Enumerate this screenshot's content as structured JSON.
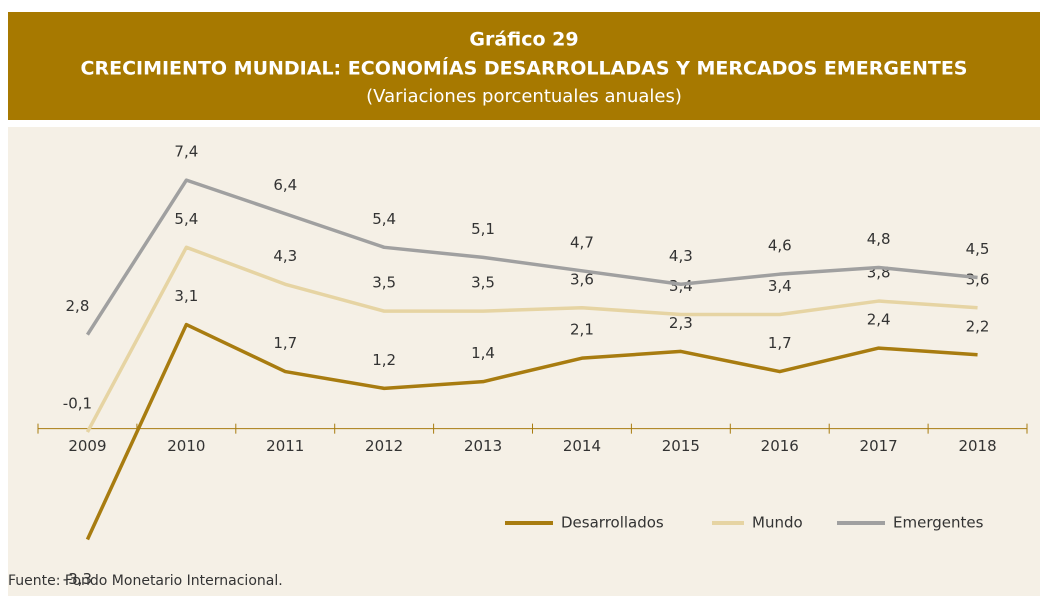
{
  "chart_data": {
    "type": "line",
    "chart_number": "Gráfico 29",
    "title": "CRECIMIENTO MUNDIAL: ECONOMÍAS DESARROLLADAS Y MERCADOS EMERGENTES",
    "subtitle": "(Variaciones porcentuales anuales)",
    "source": "Fuente: Fondo Monetario Internacional.",
    "categories": [
      "2009",
      "2010",
      "2011",
      "2012",
      "2013",
      "2014",
      "2015",
      "2016",
      "2017",
      "2018"
    ],
    "ylim": [
      -4,
      8
    ],
    "series": [
      {
        "name": "Desarrollados",
        "color": "#a87c10",
        "values": [
          -3.3,
          3.1,
          1.7,
          1.2,
          1.4,
          2.1,
          2.3,
          1.7,
          2.4,
          2.2
        ],
        "value_labels": [
          "-3,3",
          "3,1",
          "1,7",
          "1,2",
          "1,4",
          "2,1",
          "2,3",
          "1,7",
          "2,4",
          "2,2"
        ]
      },
      {
        "name": "Mundo",
        "color": "#e6d4a3",
        "values": [
          -0.1,
          5.4,
          4.3,
          3.5,
          3.5,
          3.6,
          3.4,
          3.4,
          3.8,
          3.6
        ],
        "value_labels": [
          "-0,1",
          "5,4",
          "4,3",
          "3,5",
          "3,5",
          "3,6",
          "3,4",
          "3,4",
          "3,8",
          "3,6"
        ]
      },
      {
        "name": "Emergentes",
        "color": "#a0a0a0",
        "values": [
          2.8,
          7.4,
          6.4,
          5.4,
          5.1,
          4.7,
          4.3,
          4.6,
          4.8,
          4.5
        ],
        "value_labels": [
          "2,8",
          "7,4",
          "6,4",
          "5,4",
          "5,1",
          "4,7",
          "4,3",
          "4,6",
          "4,8",
          "4,5"
        ]
      }
    ]
  }
}
